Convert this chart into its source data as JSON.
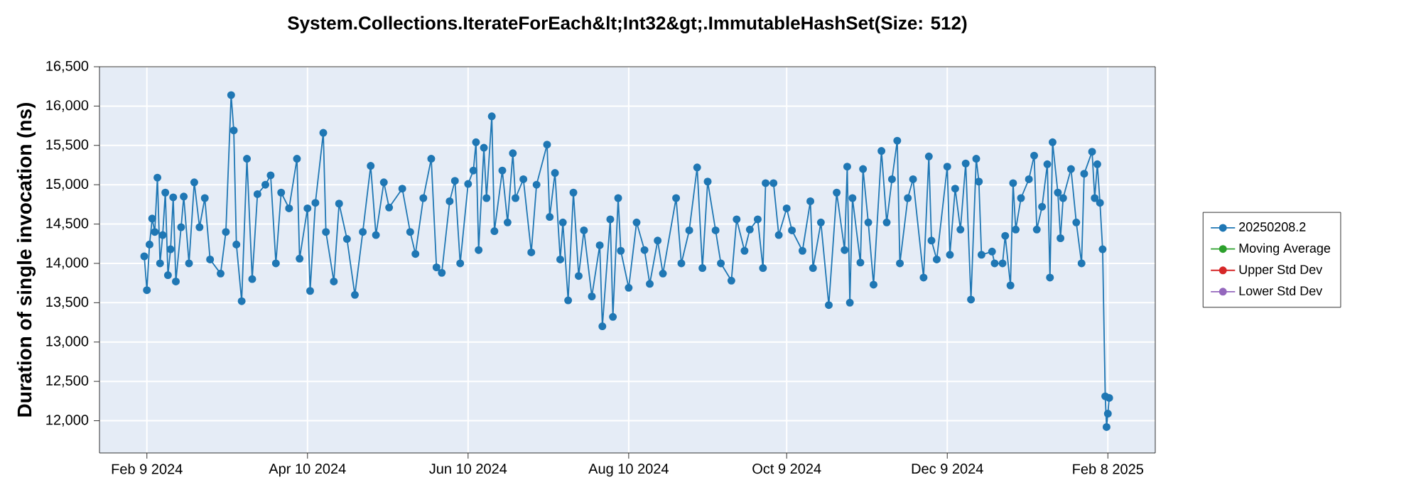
{
  "chart_data": {
    "type": "line",
    "title": "System.Collections.IterateForEach&lt;Int32&gt;.ImmutableHashSet(Size: 512)",
    "ylabel": "Duration of single invocation (ns)",
    "x": [
      "2024-02-08",
      "2024-02-09",
      "2024-02-10",
      "2024-02-11",
      "2024-02-12",
      "2024-02-13",
      "2024-02-14",
      "2024-02-15",
      "2024-02-16",
      "2024-02-17",
      "2024-02-18",
      "2024-02-19",
      "2024-02-20",
      "2024-02-22",
      "2024-02-23",
      "2024-02-25",
      "2024-02-27",
      "2024-02-29",
      "2024-03-02",
      "2024-03-04",
      "2024-03-08",
      "2024-03-10",
      "2024-03-12",
      "2024-03-13",
      "2024-03-14",
      "2024-03-16",
      "2024-03-18",
      "2024-03-20",
      "2024-03-22",
      "2024-03-25",
      "2024-03-27",
      "2024-03-29",
      "2024-03-31",
      "2024-04-03",
      "2024-04-06",
      "2024-04-07",
      "2024-04-10",
      "2024-04-11",
      "2024-04-13",
      "2024-04-16",
      "2024-04-17",
      "2024-04-20",
      "2024-04-22",
      "2024-04-25",
      "2024-04-28",
      "2024-05-01",
      "2024-05-04",
      "2024-05-06",
      "2024-05-09",
      "2024-05-11",
      "2024-05-16",
      "2024-05-19",
      "2024-05-21",
      "2024-05-24",
      "2024-05-27",
      "2024-05-29",
      "2024-05-31",
      "2024-06-03",
      "2024-06-05",
      "2024-06-07",
      "2024-06-10",
      "2024-06-12",
      "2024-06-13",
      "2024-06-14",
      "2024-06-16",
      "2024-06-17",
      "2024-06-19",
      "2024-06-20",
      "2024-06-23",
      "2024-06-25",
      "2024-06-27",
      "2024-06-28",
      "2024-07-01",
      "2024-07-04",
      "2024-07-06",
      "2024-07-10",
      "2024-07-11",
      "2024-07-13",
      "2024-07-15",
      "2024-07-16",
      "2024-07-18",
      "2024-07-20",
      "2024-07-22",
      "2024-07-24",
      "2024-07-27",
      "2024-07-30",
      "2024-07-31",
      "2024-08-03",
      "2024-08-04",
      "2024-08-06",
      "2024-08-07",
      "2024-08-10",
      "2024-08-13",
      "2024-08-16",
      "2024-08-18",
      "2024-08-21",
      "2024-08-23",
      "2024-08-28",
      "2024-08-30",
      "2024-09-02",
      "2024-09-05",
      "2024-09-07",
      "2024-09-09",
      "2024-09-12",
      "2024-09-14",
      "2024-09-18",
      "2024-09-20",
      "2024-09-23",
      "2024-09-25",
      "2024-09-28",
      "2024-09-30",
      "2024-10-01",
      "2024-10-04",
      "2024-10-06",
      "2024-10-09",
      "2024-10-11",
      "2024-10-15",
      "2024-10-18",
      "2024-10-19",
      "2024-10-22",
      "2024-10-25",
      "2024-10-28",
      "2024-10-31",
      "2024-11-01",
      "2024-11-02",
      "2024-11-03",
      "2024-11-06",
      "2024-11-07",
      "2024-11-09",
      "2024-11-11",
      "2024-11-14",
      "2024-11-16",
      "2024-11-18",
      "2024-11-20",
      "2024-11-21",
      "2024-11-24",
      "2024-11-26",
      "2024-11-30",
      "2024-12-02",
      "2024-12-03",
      "2024-12-05",
      "2024-12-09",
      "2024-12-10",
      "2024-12-12",
      "2024-12-14",
      "2024-12-16",
      "2024-12-18",
      "2024-12-20",
      "2024-12-21",
      "2024-12-22",
      "2024-12-26",
      "2024-12-27",
      "2024-12-30",
      "2024-12-31",
      "2025-01-02",
      "2025-01-03",
      "2025-01-04",
      "2025-01-06",
      "2025-01-09",
      "2025-01-11",
      "2025-01-12",
      "2025-01-14",
      "2025-01-16",
      "2025-01-17",
      "2025-01-18",
      "2025-01-20",
      "2025-01-21",
      "2025-01-22",
      "2025-01-25",
      "2025-01-27",
      "2025-01-29",
      "2025-01-30",
      "2025-02-02",
      "2025-02-03",
      "2025-02-04",
      "2025-02-05",
      "2025-02-06",
      "2025-02-07",
      "2025-02-07T12:00",
      "2025-02-08",
      "2025-02-08T12:00"
    ],
    "series": [
      {
        "name": "20250208.2",
        "color": "#1f77b4",
        "values": [
          14090,
          13660,
          14240,
          14570,
          14400,
          15090,
          14000,
          14360,
          14900,
          13850,
          14180,
          14840,
          13770,
          14460,
          14850,
          14000,
          15030,
          14460,
          14830,
          14050,
          13870,
          14400,
          16140,
          15690,
          14240,
          13520,
          15330,
          13800,
          14880,
          15000,
          15120,
          14000,
          14900,
          14700,
          15330,
          14060,
          14700,
          13650,
          14770,
          15660,
          14400,
          13770,
          14760,
          14310,
          13600,
          14400,
          15240,
          14360,
          15030,
          14710,
          14950,
          14400,
          14120,
          14830,
          15330,
          13950,
          13880,
          14790,
          15050,
          14000,
          15010,
          15180,
          15540,
          14170,
          15470,
          14830,
          15870,
          14410,
          15180,
          14520,
          15400,
          14830,
          15070,
          14140,
          15000,
          15510,
          14590,
          15150,
          14050,
          14520,
          13530,
          14900,
          13840,
          14420,
          13580,
          14230,
          13200,
          14560,
          13320,
          14830,
          14160,
          13690,
          14520,
          14170,
          13740,
          14290,
          13870,
          14830,
          14000,
          14420,
          15220,
          13940,
          15040,
          14420,
          14000,
          13780,
          14560,
          14160,
          14430,
          14560,
          13940,
          15020,
          15020,
          14360,
          14700,
          14420,
          14160,
          14790,
          13940,
          14520,
          13470,
          14900,
          14170,
          15230,
          13500,
          14830,
          14010,
          15200,
          14520,
          13730,
          15430,
          14520,
          15070,
          15560,
          14000,
          14830,
          15070,
          13820,
          15360,
          14290,
          14050,
          15230,
          14110,
          14950,
          14430,
          15270,
          13540,
          15330,
          15040,
          14110,
          14150,
          14000,
          14000,
          14350,
          13720,
          15020,
          14430,
          14830,
          15070,
          15370,
          14430,
          14720,
          15260,
          13820,
          15540,
          14900,
          14320,
          14830,
          15200,
          14520,
          14000,
          15140,
          15420,
          14830,
          15260,
          14770,
          14180,
          12310,
          11920,
          12090,
          12290
        ]
      },
      {
        "name": "Moving Average",
        "color": "#2ca02c",
        "values": [
          null,
          null,
          null,
          null,
          null,
          null,
          null,
          null,
          null,
          null,
          null,
          null,
          null,
          null,
          null,
          null,
          null,
          null,
          null,
          null,
          null,
          null,
          null,
          null,
          null,
          null,
          null,
          null,
          null,
          null,
          null,
          null,
          null,
          null,
          null,
          null,
          null,
          null,
          null,
          null,
          null,
          null,
          null,
          null,
          null,
          null,
          null,
          null,
          null,
          null,
          null,
          null,
          null,
          null,
          null,
          null,
          null,
          null,
          null,
          null,
          null,
          null,
          null,
          null,
          null,
          null,
          null,
          null,
          null,
          null,
          null,
          null,
          null,
          null,
          null,
          null,
          null,
          null,
          null,
          null,
          null,
          null,
          null,
          null,
          null,
          null,
          null,
          null,
          null,
          null,
          null,
          null,
          null,
          null,
          null,
          null,
          null,
          null,
          null,
          null,
          null,
          null,
          null,
          null,
          null,
          null,
          null,
          null,
          null,
          null,
          null,
          null,
          null,
          null,
          null,
          null,
          null,
          null,
          null,
          null,
          null,
          null,
          null,
          null,
          null,
          null,
          null,
          null,
          null,
          null,
          null,
          null,
          null,
          null,
          null,
          null,
          null,
          null,
          null,
          null,
          null,
          null,
          null,
          null,
          null,
          null,
          null,
          null,
          null,
          null,
          null,
          null,
          null,
          null,
          null,
          null,
          null,
          null,
          null,
          null,
          null,
          null,
          null,
          null,
          null,
          null,
          null,
          null,
          null,
          null,
          null,
          null,
          null,
          null,
          null,
          null,
          null,
          null,
          null,
          null,
          null
        ]
      },
      {
        "name": "Upper Std Dev",
        "color": "#d62728",
        "values": [
          null,
          null,
          null,
          null,
          null,
          null,
          null,
          null,
          null,
          null,
          null,
          null,
          null,
          null,
          null,
          null,
          null,
          null,
          null,
          null,
          null,
          null,
          null,
          null,
          null,
          null,
          null,
          null,
          null,
          null,
          null,
          null,
          null,
          null,
          null,
          null,
          null,
          null,
          null,
          null,
          null,
          null,
          null,
          null,
          null,
          null,
          null,
          null,
          null,
          null,
          null,
          null,
          null,
          null,
          null,
          null,
          null,
          null,
          null,
          null,
          null,
          null,
          null,
          null,
          null,
          null,
          null,
          null,
          null,
          null,
          null,
          null,
          null,
          null,
          null,
          null,
          null,
          null,
          null,
          null,
          null,
          null,
          null,
          null,
          null,
          null,
          null,
          null,
          null,
          null,
          null,
          null,
          null,
          null,
          null,
          null,
          null,
          null,
          null,
          null,
          null,
          null,
          null,
          null,
          null,
          null,
          null,
          null,
          null,
          null,
          null,
          null,
          null,
          null,
          null,
          null,
          null,
          null,
          null,
          null,
          null,
          null,
          null,
          null,
          null,
          null,
          null,
          null,
          null,
          null,
          null,
          null,
          null,
          null,
          null,
          null,
          null,
          null,
          null,
          null,
          null,
          null,
          null,
          null,
          null,
          null,
          null,
          null,
          null,
          null,
          null,
          null,
          null,
          null,
          null,
          null,
          null,
          null,
          null,
          null,
          null,
          null,
          null,
          null,
          null,
          null,
          null,
          null,
          null,
          null,
          null,
          null,
          null,
          null,
          null,
          null,
          null,
          null,
          null,
          null,
          null
        ]
      },
      {
        "name": "Lower Std Dev",
        "color": "#9467bd",
        "values": [
          null,
          null,
          null,
          null,
          null,
          null,
          null,
          null,
          null,
          null,
          null,
          null,
          null,
          null,
          null,
          null,
          null,
          null,
          null,
          null,
          null,
          null,
          null,
          null,
          null,
          null,
          null,
          null,
          null,
          null,
          null,
          null,
          null,
          null,
          null,
          null,
          null,
          null,
          null,
          null,
          null,
          null,
          null,
          null,
          null,
          null,
          null,
          null,
          null,
          null,
          null,
          null,
          null,
          null,
          null,
          null,
          null,
          null,
          null,
          null,
          null,
          null,
          null,
          null,
          null,
          null,
          null,
          null,
          null,
          null,
          null,
          null,
          null,
          null,
          null,
          null,
          null,
          null,
          null,
          null,
          null,
          null,
          null,
          null,
          null,
          null,
          null,
          null,
          null,
          null,
          null,
          null,
          null,
          null,
          null,
          null,
          null,
          null,
          null,
          null,
          null,
          null,
          null,
          null,
          null,
          null,
          null,
          null,
          null,
          null,
          null,
          null,
          null,
          null,
          null,
          null,
          null,
          null,
          null,
          null,
          null,
          null,
          null,
          null,
          null,
          null,
          null,
          null,
          null,
          null,
          null,
          null,
          null,
          null,
          null,
          null,
          null,
          null,
          null,
          null,
          null,
          null,
          null,
          null,
          null,
          null,
          null,
          null,
          null,
          null,
          null,
          null,
          null,
          null,
          null,
          null,
          null,
          null,
          null,
          null,
          null,
          null,
          null,
          null,
          null,
          null,
          null,
          null,
          null,
          null,
          null,
          null,
          null,
          null,
          null,
          null,
          null,
          null,
          null,
          null,
          null
        ]
      }
    ],
    "xlim": [
      "2024-01-22",
      "2025-02-26"
    ],
    "xticks": [
      {
        "value": "2024-02-09",
        "label": "Feb 9 2024"
      },
      {
        "value": "2024-04-10",
        "label": "Apr 10 2024"
      },
      {
        "value": "2024-06-10",
        "label": "Jun 10 2024"
      },
      {
        "value": "2024-08-10",
        "label": "Aug 10 2024"
      },
      {
        "value": "2024-10-09",
        "label": "Oct 9 2024"
      },
      {
        "value": "2024-12-09",
        "label": "Dec 9 2024"
      },
      {
        "value": "2025-02-08",
        "label": "Feb 8 2025"
      }
    ],
    "ylim": [
      11590,
      16500
    ],
    "yticks": [
      {
        "value": 12000,
        "label": "12,000"
      },
      {
        "value": 12500,
        "label": "12,500"
      },
      {
        "value": 13000,
        "label": "13,000"
      },
      {
        "value": 13500,
        "label": "13,500"
      },
      {
        "value": 14000,
        "label": "14,000"
      },
      {
        "value": 14500,
        "label": "14,500"
      },
      {
        "value": 15000,
        "label": "15,000"
      },
      {
        "value": 15500,
        "label": "15,500"
      },
      {
        "value": 16000,
        "label": "16,000"
      },
      {
        "value": 16500,
        "label": "16,500"
      }
    ],
    "grid": true,
    "legend": "right",
    "marker": "circle",
    "line_style": "solid"
  }
}
